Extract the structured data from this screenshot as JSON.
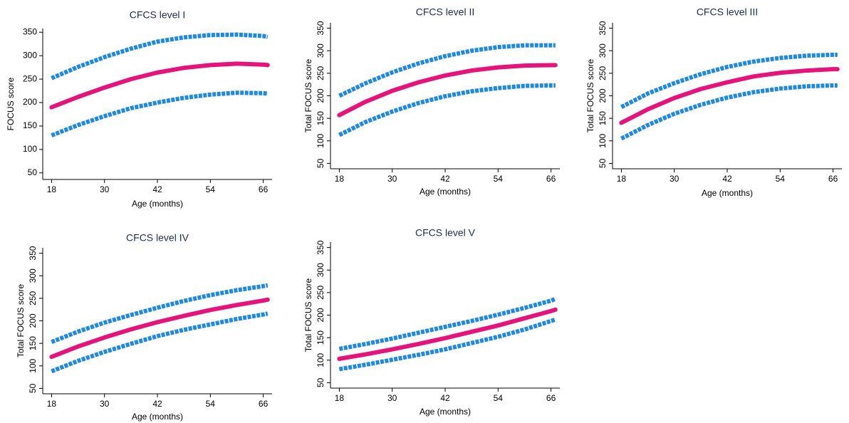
{
  "chart_data": [
    {
      "type": "line",
      "title": "CFCS level I",
      "x_label": "Age (months)",
      "y_label": "FOCUS score",
      "x": [
        18,
        24,
        30,
        36,
        42,
        48,
        54,
        60,
        66,
        67
      ],
      "xlim": [
        16,
        68
      ],
      "xticks": [
        18,
        30,
        42,
        54,
        66
      ],
      "ylim": [
        36,
        358
      ],
      "yticks": [
        50,
        100,
        150,
        200,
        250,
        300,
        350
      ],
      "ytick_labels_rotated": false,
      "series": [
        {
          "color": "#1e88e5",
          "dashed": true,
          "values": [
            252,
            276,
            297,
            315,
            330,
            339,
            344,
            345,
            342,
            340
          ]
        },
        {
          "color": "#1e88e5",
          "dashed": true,
          "values": [
            130,
            152,
            171,
            188,
            200,
            210,
            217,
            221,
            220,
            219
          ]
        },
        {
          "color": "#e6137a",
          "dashed": false,
          "values": [
            190,
            212,
            232,
            250,
            264,
            274,
            280,
            283,
            281,
            280
          ]
        }
      ]
    },
    {
      "type": "line",
      "title": "CFCS level II",
      "x_label": "Age (months)",
      "y_label": "Total FOCUS score",
      "x": [
        18,
        24,
        30,
        36,
        42,
        48,
        54,
        60,
        66,
        67
      ],
      "xlim": [
        16,
        68
      ],
      "xticks": [
        18,
        30,
        42,
        54,
        66
      ],
      "ylim": [
        38,
        362
      ],
      "yticks": [
        50,
        100,
        150,
        200,
        250,
        300,
        350
      ],
      "ytick_labels_rotated": true,
      "series": [
        {
          "color": "#1e88e5",
          "dashed": true,
          "values": [
            200,
            228,
            252,
            272,
            288,
            300,
            308,
            312,
            312,
            312
          ]
        },
        {
          "color": "#1e88e5",
          "dashed": true,
          "values": [
            113,
            142,
            165,
            184,
            199,
            210,
            217,
            222,
            223,
            223
          ]
        },
        {
          "color": "#e6137a",
          "dashed": false,
          "values": [
            157,
            187,
            211,
            230,
            245,
            256,
            263,
            267,
            268,
            268
          ]
        }
      ]
    },
    {
      "type": "line",
      "title": "CFCS level III",
      "x_label": "Age (months)",
      "y_label": "Total FOCUS score",
      "x": [
        18,
        24,
        30,
        36,
        42,
        48,
        54,
        60,
        66,
        67
      ],
      "xlim": [
        16,
        68
      ],
      "xticks": [
        18,
        30,
        42,
        54,
        66
      ],
      "ylim": [
        38,
        362
      ],
      "yticks": [
        50,
        100,
        150,
        200,
        250,
        300,
        350
      ],
      "ytick_labels_rotated": true,
      "series": [
        {
          "color": "#1e88e5",
          "dashed": true,
          "values": [
            175,
            205,
            228,
            248,
            264,
            276,
            284,
            289,
            291,
            291
          ]
        },
        {
          "color": "#1e88e5",
          "dashed": true,
          "values": [
            105,
            135,
            160,
            180,
            196,
            208,
            216,
            221,
            223,
            223
          ]
        },
        {
          "color": "#e6137a",
          "dashed": false,
          "values": [
            140,
            170,
            195,
            215,
            230,
            243,
            251,
            256,
            259,
            259
          ]
        }
      ]
    },
    {
      "type": "line",
      "title": "CFCS level IV",
      "x_label": "Age (months)",
      "y_label": "Total FOCUS score",
      "x": [
        18,
        24,
        30,
        36,
        42,
        48,
        54,
        60,
        66,
        67
      ],
      "xlim": [
        16,
        68
      ],
      "xticks": [
        18,
        30,
        42,
        54,
        66
      ],
      "ylim": [
        38,
        362
      ],
      "yticks": [
        50,
        100,
        150,
        200,
        250,
        300,
        350
      ],
      "ytick_labels_rotated": true,
      "series": [
        {
          "color": "#1e88e5",
          "dashed": true,
          "values": [
            153,
            176,
            196,
            213,
            229,
            244,
            257,
            268,
            277,
            279
          ]
        },
        {
          "color": "#1e88e5",
          "dashed": true,
          "values": [
            88,
            111,
            131,
            149,
            166,
            180,
            192,
            204,
            214,
            216
          ]
        },
        {
          "color": "#e6137a",
          "dashed": false,
          "values": [
            120,
            143,
            163,
            181,
            197,
            211,
            224,
            235,
            245,
            247
          ]
        }
      ]
    },
    {
      "type": "line",
      "title": "CFCS level V",
      "x_label": "Age (months)",
      "y_label": "Total FOCUS score",
      "x": [
        18,
        24,
        30,
        36,
        42,
        48,
        54,
        60,
        66,
        67
      ],
      "xlim": [
        16,
        68
      ],
      "xticks": [
        18,
        30,
        42,
        54,
        66
      ],
      "ylim": [
        38,
        362
      ],
      "yticks": [
        50,
        100,
        150,
        200,
        250,
        300,
        350
      ],
      "ytick_labels_rotated": true,
      "series": [
        {
          "color": "#1e88e5",
          "dashed": true,
          "values": [
            125,
            136,
            148,
            161,
            174,
            187,
            201,
            216,
            232,
            236
          ]
        },
        {
          "color": "#1e88e5",
          "dashed": true,
          "values": [
            80,
            90,
            101,
            112,
            124,
            138,
            152,
            168,
            187,
            190
          ]
        },
        {
          "color": "#e6137a",
          "dashed": false,
          "values": [
            103,
            113,
            124,
            136,
            149,
            163,
            177,
            193,
            209,
            212
          ]
        }
      ]
    }
  ]
}
